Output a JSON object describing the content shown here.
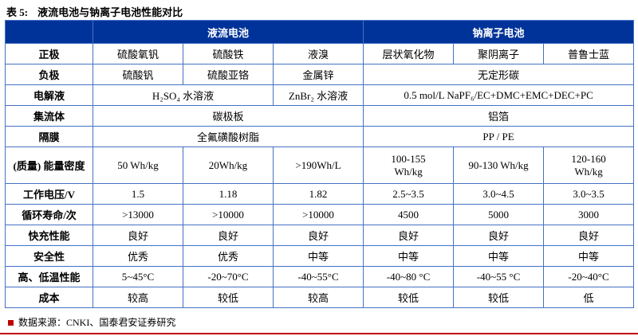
{
  "title": {
    "label": "表 5:",
    "text": "液流电池与钠离子电池性能对比"
  },
  "footer": {
    "source": "数据来源：CNKI、国泰君安证券研究"
  },
  "colors": {
    "header_bg": "#003399",
    "border_blue": "#4472C4",
    "accent_red": "#C00000"
  },
  "table": {
    "header": {
      "corner": "",
      "groups": [
        {
          "text": "液流电池",
          "span": 3
        },
        {
          "text": "钠离子电池",
          "span": 3
        }
      ]
    },
    "rows": [
      {
        "label": "正极",
        "cells": [
          {
            "text": "硫酸氧钒"
          },
          {
            "text": "硫酸铁"
          },
          {
            "text": "液溴"
          },
          {
            "text": "层状氧化物"
          },
          {
            "text": "聚阴离子"
          },
          {
            "text": "普鲁士蓝"
          }
        ]
      },
      {
        "label": "负极",
        "cells": [
          {
            "text": "硫酸钒"
          },
          {
            "text": "硫酸亚铬"
          },
          {
            "text": "金属锌"
          },
          {
            "text": "无定形碳",
            "span": 3
          }
        ]
      },
      {
        "label": "电解液",
        "cells": [
          {
            "text": "H₂SO₄ 水溶液",
            "span": 2
          },
          {
            "text": "ZnBr₂ 水溶液"
          },
          {
            "text": "0.5 mol/L NaPF₆/EC+DMC+EMC+DEC+PC",
            "span": 3
          }
        ]
      },
      {
        "label": "集流体",
        "cells": [
          {
            "text": "碳极板",
            "span": 3
          },
          {
            "text": "铝箔",
            "span": 3
          }
        ]
      },
      {
        "label": "隔膜",
        "cells": [
          {
            "text": "全氟磺酸树脂",
            "span": 3
          },
          {
            "text": "PP / PE",
            "span": 3
          }
        ]
      },
      {
        "label": "(质量) 能量密度",
        "tall": true,
        "cells": [
          {
            "text": "50 Wh/kg"
          },
          {
            "text": "20Wh/kg"
          },
          {
            "text": ">190Wh/L"
          },
          {
            "text": "100-155\nWh/kg"
          },
          {
            "text": "90-130 Wh/kg"
          },
          {
            "text": "120-160\nWh/kg"
          }
        ]
      },
      {
        "label": "工作电压/V",
        "cells": [
          {
            "text": "1.5"
          },
          {
            "text": "1.18"
          },
          {
            "text": "1.82"
          },
          {
            "text": "2.5~3.5"
          },
          {
            "text": "3.0~4.5"
          },
          {
            "text": "3.0~3.5"
          }
        ]
      },
      {
        "label": "循环寿命/次",
        "cells": [
          {
            "text": ">13000"
          },
          {
            "text": ">10000"
          },
          {
            "text": ">10000"
          },
          {
            "text": "4500"
          },
          {
            "text": "5000"
          },
          {
            "text": "3000"
          }
        ]
      },
      {
        "label": "快充性能",
        "cells": [
          {
            "text": "良好"
          },
          {
            "text": "良好"
          },
          {
            "text": "良好"
          },
          {
            "text": "良好"
          },
          {
            "text": "良好"
          },
          {
            "text": "良好"
          }
        ]
      },
      {
        "label": "安全性",
        "cells": [
          {
            "text": "优秀"
          },
          {
            "text": "优秀"
          },
          {
            "text": "中等"
          },
          {
            "text": "中等"
          },
          {
            "text": "中等"
          },
          {
            "text": "中等"
          }
        ]
      },
      {
        "label": "高、低温性能",
        "cells": [
          {
            "text": "5~45°C"
          },
          {
            "text": "-20~70°C"
          },
          {
            "text": "-40~55°C"
          },
          {
            "text": "-40~80 °C"
          },
          {
            "text": "-40~55 °C"
          },
          {
            "text": "-20~40°C"
          }
        ]
      },
      {
        "label": "成本",
        "cells": [
          {
            "text": "较高"
          },
          {
            "text": "较低"
          },
          {
            "text": "较高"
          },
          {
            "text": "较低"
          },
          {
            "text": "较低"
          },
          {
            "text": "低"
          }
        ]
      }
    ]
  }
}
